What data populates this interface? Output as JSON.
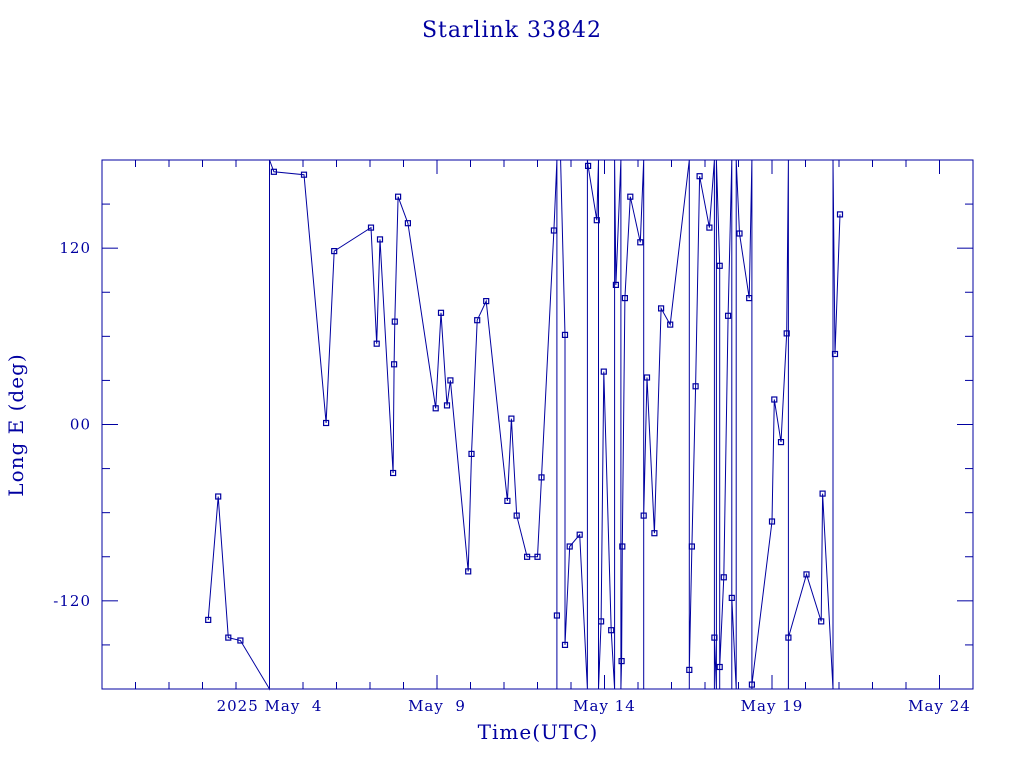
{
  "chart_data": {
    "type": "line",
    "title": "Starlink 33842",
    "xlabel": "Time(UTC)",
    "ylabel": "Long E (deg)",
    "xlim": [
      "2025-04-29",
      "2025-05-25"
    ],
    "ylim": [
      -180,
      180
    ],
    "grid": false,
    "x_tick_labels": [
      {
        "date": "2025-05-04",
        "label": "2025 May  4"
      },
      {
        "date": "2025-05-09",
        "label": "May  9"
      },
      {
        "date": "2025-05-14",
        "label": "May 14"
      },
      {
        "date": "2025-05-19",
        "label": "May 19"
      },
      {
        "date": "2025-05-24",
        "label": "May 24"
      }
    ],
    "y_tick_labels": [
      {
        "value": 120,
        "label": "120"
      },
      {
        "value": 0,
        "label": "00"
      },
      {
        "value": -120,
        "label": "-120"
      }
    ],
    "series": [
      {
        "values": [
          {
            "x": "2025-05-02 04:05",
            "y": -133
          },
          {
            "x": "2025-05-02 11:17",
            "y": -49
          },
          {
            "x": "2025-05-02 18:29",
            "y": -145
          },
          {
            "x": "2025-05-03 03:07",
            "y": -147
          },
          {
            "x": "2025-05-04 00:00",
            "y": -180
          },
          {
            "x": "2025-05-04 00:00",
            "y": 180
          },
          {
            "x": "2025-05-04 03:07",
            "y": 172
          },
          {
            "x": "2025-05-05 00:43",
            "y": 170
          },
          {
            "x": "2025-05-05 16:34",
            "y": 1
          },
          {
            "x": "2025-05-05 22:19",
            "y": 118
          },
          {
            "x": "2025-05-07 00:43",
            "y": 134
          },
          {
            "x": "2025-05-07 04:48",
            "y": 55
          },
          {
            "x": "2025-05-07 07:12",
            "y": 126
          },
          {
            "x": "2025-05-07 16:34",
            "y": -33
          },
          {
            "x": "2025-05-07 17:17",
            "y": 41
          },
          {
            "x": "2025-05-07 17:46",
            "y": 70
          },
          {
            "x": "2025-05-07 20:10",
            "y": 155
          },
          {
            "x": "2025-05-08 03:07",
            "y": 137
          },
          {
            "x": "2025-05-08 23:02",
            "y": 11
          },
          {
            "x": "2025-05-09 02:53",
            "y": 76
          },
          {
            "x": "2025-05-09 07:12",
            "y": 13
          },
          {
            "x": "2025-05-09 09:36",
            "y": 30
          },
          {
            "x": "2025-05-09 22:19",
            "y": -100
          },
          {
            "x": "2025-05-10 00:43",
            "y": -20
          },
          {
            "x": "2025-05-10 04:48",
            "y": 71
          },
          {
            "x": "2025-05-10 11:17",
            "y": 84
          },
          {
            "x": "2025-05-11 02:24",
            "y": -52
          },
          {
            "x": "2025-05-11 05:17",
            "y": 4
          },
          {
            "x": "2025-05-11 09:07",
            "y": -62
          },
          {
            "x": "2025-05-11 16:34",
            "y": -90
          },
          {
            "x": "2025-05-12 00:00",
            "y": -90
          },
          {
            "x": "2025-05-12 02:53",
            "y": -36
          },
          {
            "x": "2025-05-12 11:46",
            "y": 132
          },
          {
            "x": "2025-05-12 13:55",
            "y": 180
          },
          {
            "x": "2025-05-12 13:55",
            "y": -180
          },
          {
            "x": "2025-05-12 13:55",
            "y": -130
          },
          {
            "x": "2025-05-12 13:55",
            "y": -180
          },
          {
            "x": "2025-05-12 13:55",
            "y": 180
          },
          {
            "x": "2025-05-12 16:34",
            "y": 180
          },
          {
            "x": "2025-05-12 19:41",
            "y": 61
          },
          {
            "x": "2025-05-12 19:41",
            "y": -150
          },
          {
            "x": "2025-05-12 23:02",
            "y": -83
          },
          {
            "x": "2025-05-13 06:14",
            "y": -75
          },
          {
            "x": "2025-05-13 11:46",
            "y": -180
          },
          {
            "x": "2025-05-13 11:46",
            "y": 180
          },
          {
            "x": "2025-05-13 12:14",
            "y": 176
          },
          {
            "x": "2025-05-13 18:29",
            "y": 139
          },
          {
            "x": "2025-05-13 19:41",
            "y": 180
          },
          {
            "x": "2025-05-13 19:41",
            "y": -180
          },
          {
            "x": "2025-05-13 21:36",
            "y": -134
          },
          {
            "x": "2025-05-13 23:31",
            "y": 36
          },
          {
            "x": "2025-05-14 04:48",
            "y": -140
          },
          {
            "x": "2025-05-14 07:12",
            "y": -180
          },
          {
            "x": "2025-05-14 07:12",
            "y": 180
          },
          {
            "x": "2025-05-14 08:10",
            "y": 95
          },
          {
            "x": "2025-05-14 11:46",
            "y": 180
          },
          {
            "x": "2025-05-14 11:46",
            "y": -180
          },
          {
            "x": "2025-05-14 12:14",
            "y": -161
          },
          {
            "x": "2025-05-14 12:43",
            "y": -83
          },
          {
            "x": "2025-05-14 14:38",
            "y": 86
          },
          {
            "x": "2025-05-14 18:29",
            "y": 155
          },
          {
            "x": "2025-05-15 01:41",
            "y": 124
          },
          {
            "x": "2025-05-15 04:05",
            "y": 180
          },
          {
            "x": "2025-05-15 04:05",
            "y": -180
          },
          {
            "x": "2025-05-15 04:05",
            "y": -62
          },
          {
            "x": "2025-05-15 06:29",
            "y": 32
          },
          {
            "x": "2025-05-15 11:46",
            "y": -74
          },
          {
            "x": "2025-05-15 16:34",
            "y": 79
          },
          {
            "x": "2025-05-15 23:02",
            "y": 68
          },
          {
            "x": "2025-05-16 12:43",
            "y": 180
          },
          {
            "x": "2025-05-16 12:43",
            "y": -180
          },
          {
            "x": "2025-05-16 12:43",
            "y": -167
          },
          {
            "x": "2025-05-16 14:38",
            "y": -83
          },
          {
            "x": "2025-05-16 17:17",
            "y": 26
          },
          {
            "x": "2025-05-16 20:10",
            "y": 169
          },
          {
            "x": "2025-05-17 03:07",
            "y": 134
          },
          {
            "x": "2025-05-17 06:43",
            "y": 180
          },
          {
            "x": "2025-05-17 06:43",
            "y": -180
          },
          {
            "x": "2025-05-17 06:43",
            "y": -145
          },
          {
            "x": "2025-05-17 08:10",
            "y": -180
          },
          {
            "x": "2025-05-17 08:10",
            "y": 180
          },
          {
            "x": "2025-05-17 10:34",
            "y": 108
          },
          {
            "x": "2025-05-17 10:34",
            "y": -180
          },
          {
            "x": "2025-05-17 10:34",
            "y": -165
          },
          {
            "x": "2025-05-17 13:26",
            "y": -104
          },
          {
            "x": "2025-05-17 16:34",
            "y": 74
          },
          {
            "x": "2025-05-17 19:12",
            "y": 180
          },
          {
            "x": "2025-05-17 19:12",
            "y": -180
          },
          {
            "x": "2025-05-17 19:12",
            "y": -118
          },
          {
            "x": "2025-05-17 22:19",
            "y": -180
          },
          {
            "x": "2025-05-17 22:19",
            "y": 180
          },
          {
            "x": "2025-05-18 00:43",
            "y": 130
          },
          {
            "x": "2025-05-18 07:41",
            "y": 86
          },
          {
            "x": "2025-05-18 09:36",
            "y": 180
          },
          {
            "x": "2025-05-18 09:36",
            "y": -180
          },
          {
            "x": "2025-05-18 09:36",
            "y": -177
          },
          {
            "x": "2025-05-19 00:00",
            "y": -66
          },
          {
            "x": "2025-05-19 01:41",
            "y": 17
          },
          {
            "x": "2025-05-19 06:29",
            "y": -12
          },
          {
            "x": "2025-05-19 10:34",
            "y": 62
          },
          {
            "x": "2025-05-19 11:46",
            "y": 180
          },
          {
            "x": "2025-05-19 11:46",
            "y": -180
          },
          {
            "x": "2025-05-19 11:46",
            "y": -145
          },
          {
            "x": "2025-05-20 00:43",
            "y": -102
          },
          {
            "x": "2025-05-20 11:17",
            "y": -134
          },
          {
            "x": "2025-05-20 12:14",
            "y": -47
          },
          {
            "x": "2025-05-20 19:41",
            "y": -180
          },
          {
            "x": "2025-05-20 19:41",
            "y": 180
          },
          {
            "x": "2025-05-20 21:07",
            "y": 48
          },
          {
            "x": "2025-05-21 00:43",
            "y": 143
          }
        ]
      }
    ]
  }
}
